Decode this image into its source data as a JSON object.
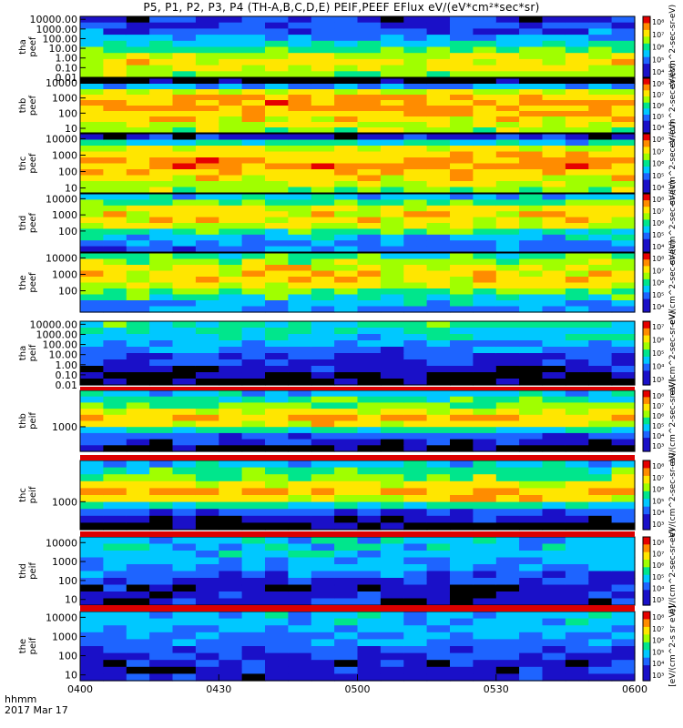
{
  "title": "P5, P1, P2, P3, P4 (TH-A,B,C,D,E) PEIF,PEEF EFlux eV/(eV*cm²*sec*sr)",
  "x_axis": {
    "units_label": "hhmm",
    "date_label": "2017 Mar 17",
    "ticks": [
      "0400",
      "0430",
      "0500",
      "0530",
      "0600"
    ]
  },
  "colorbar_units": [
    "eV/(cm^2-sec-sr-eV)",
    "eV/(cm^2-sec-sr-eV)",
    "eV/(cm^2-sec-sr-eV)",
    "eV/(cm^2-sec-sr-eV)",
    "eV/(cm^2-sec-sr-eV)",
    "eV/(cm^2-sec-sr-eV)",
    "eV/(cm^2-sec-sr-eV)",
    "eV/(cm^2-sec-sr-eV)",
    "eV/(cm^2-sec-sr-eV)",
    "[eV/(cm^2-s sr eV)]"
  ],
  "chart_data": [
    {
      "type": "heatmap",
      "probe": "tha",
      "species": "peef",
      "ylabel": [
        "tha",
        "peef"
      ],
      "y_scale": "log",
      "ylim": [
        0.01,
        20000
      ],
      "y_ticks": [
        "10000.00",
        "1000.00",
        "100.00",
        "10.00",
        "1.00",
        "0.10",
        "0.01"
      ],
      "colorbar_ticks": [
        "10^8",
        "10^7",
        "10^6",
        "10^5",
        "10^4"
      ],
      "profile": {
        "top": 1,
        "hi": 2,
        "mid": 4,
        "low": 6,
        "bot": 5
      }
    },
    {
      "type": "heatmap",
      "probe": "thb",
      "species": "peef",
      "ylabel": [
        "thb",
        "peef"
      ],
      "y_scale": "log",
      "ylim": [
        5,
        20000
      ],
      "y_ticks": [
        "10000",
        "1000",
        "100",
        "10"
      ],
      "colorbar_ticks": [
        "10^8",
        "10^7",
        "10^6",
        "10^5",
        "10^4"
      ],
      "profile": {
        "top": 0,
        "hi": 6,
        "mid": 7,
        "low": 6,
        "bot": 5
      }
    },
    {
      "type": "heatmap",
      "probe": "thc",
      "species": "peef",
      "ylabel": [
        "thc",
        "peef"
      ],
      "y_scale": "log",
      "ylim": [
        5,
        20000
      ],
      "y_ticks": [
        "10000",
        "1000",
        "100",
        "10"
      ],
      "colorbar_ticks": [
        "10^8",
        "10^7",
        "10^6",
        "10^5",
        "10^4"
      ],
      "profile": {
        "top": 1,
        "hi": 6,
        "mid": 7,
        "low": 6,
        "bot": 5
      }
    },
    {
      "type": "heatmap",
      "probe": "thd",
      "species": "peef",
      "ylabel": [
        "thd",
        "peef"
      ],
      "y_scale": "log",
      "ylim": [
        5,
        20000
      ],
      "y_ticks": [
        "10000",
        "1000",
        "100"
      ],
      "colorbar_ticks": [
        "10^8",
        "10^7",
        "10^6",
        "10^5",
        "10^4"
      ],
      "profile": {
        "top": 3,
        "hi": 6,
        "mid": 6,
        "low": 3,
        "bot": 2
      }
    },
    {
      "type": "heatmap",
      "probe": "the",
      "species": "peef",
      "ylabel": [
        "the",
        "peef"
      ],
      "y_scale": "log",
      "ylim": [
        5,
        20000
      ],
      "y_ticks": [
        "10000",
        "1000",
        "100"
      ],
      "colorbar_ticks": [
        "10^8",
        "10^7",
        "10^6",
        "10^5",
        "10^4"
      ],
      "profile": {
        "top": 4,
        "hi": 6,
        "mid": 6,
        "low": 4,
        "bot": 2
      }
    },
    {
      "type": "heatmap",
      "probe": "tha",
      "species": "peif",
      "ylabel": [
        "tha",
        "peif"
      ],
      "y_scale": "log",
      "ylim": [
        0.01,
        20000
      ],
      "y_ticks": [
        "10000.00",
        "1000.00",
        "100.00",
        "10.00",
        "1.00",
        "0.10",
        "0.01"
      ],
      "colorbar_ticks": [
        "10^7",
        "10^6",
        "10^5",
        "10^4",
        "10^3"
      ],
      "profile": {
        "top": 4,
        "hi": 3,
        "mid": 2,
        "low": 1,
        "bot": 0
      }
    },
    {
      "type": "heatmap",
      "probe": "thb",
      "species": "peif",
      "ylabel": [
        "thb",
        "peif"
      ],
      "y_scale": "log",
      "ylim": [
        100,
        30000
      ],
      "y_ticks": [
        "1000"
      ],
      "colorbar_ticks": [
        "10^8",
        "10^7",
        "10^6",
        "10^5",
        "10^4",
        "10^3"
      ],
      "profile": {
        "top": 3,
        "hi": 5,
        "mid": 7,
        "low": 2,
        "bot": 0
      }
    },
    {
      "type": "heatmap",
      "probe": "thc",
      "species": "peif",
      "ylabel": [
        "thc",
        "peif"
      ],
      "y_scale": "log",
      "ylim": [
        100,
        30000
      ],
      "y_ticks": [
        "1000"
      ],
      "colorbar_ticks": [
        "10^8",
        "10^7",
        "10^6",
        "10^5",
        "10^4",
        "10^3"
      ],
      "profile": {
        "top": 3,
        "hi": 5,
        "mid": 7,
        "low": 2,
        "bot": 0
      }
    },
    {
      "type": "heatmap",
      "probe": "thd",
      "species": "peif",
      "ylabel": [
        "thd",
        "peif"
      ],
      "y_scale": "log",
      "ylim": [
        5,
        20000
      ],
      "y_ticks": [
        "10000",
        "1000",
        "100",
        "10"
      ],
      "colorbar_ticks": [
        "10^8",
        "10^7",
        "10^6",
        "10^5",
        "10^4",
        "10^3"
      ],
      "profile": {
        "top": 3,
        "hi": 3,
        "mid": 2,
        "low": 1,
        "bot": 1
      }
    },
    {
      "type": "heatmap",
      "probe": "the",
      "species": "peif",
      "ylabel": [
        "the",
        "peif"
      ],
      "y_scale": "log",
      "ylim": [
        5,
        20000
      ],
      "y_ticks": [
        "10000",
        "1000",
        "100",
        "10"
      ],
      "colorbar_ticks": [
        "10^8",
        "10^7",
        "10^6",
        "10^5",
        "10^4",
        "10^3"
      ],
      "profile": {
        "top": 3,
        "hi": 3,
        "mid": 2,
        "low": 1,
        "bot": 1
      }
    }
  ],
  "colors": {
    "palette": [
      "#000000",
      "#1a10c8",
      "#1e64ff",
      "#00c8ff",
      "#00e68c",
      "#a0ff00",
      "#ffe600",
      "#ff8c00",
      "#e60000"
    ],
    "frame": "#000000",
    "fill_band": "#dc0000"
  }
}
